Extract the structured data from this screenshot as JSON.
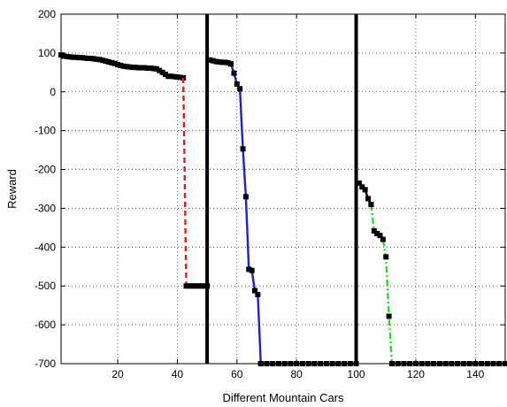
{
  "chart_data": {
    "type": "line",
    "title": "",
    "xlabel": "Different Mountain Cars",
    "ylabel": "Reward",
    "xlim": [
      1,
      150
    ],
    "ylim": [
      -700,
      200
    ],
    "xticks": [
      20,
      40,
      60,
      80,
      100,
      120,
      140
    ],
    "yticks": [
      200,
      100,
      0,
      -100,
      -200,
      -300,
      -400,
      -500,
      -600,
      -700
    ],
    "grid": true,
    "legend": "none",
    "separators": [
      50,
      100
    ],
    "series": [
      {
        "color": "#000000",
        "style": "solid",
        "marker": "square",
        "x": [
          1,
          2,
          3,
          4,
          5,
          6,
          7,
          8,
          9,
          10,
          11,
          12,
          13,
          14,
          15,
          16,
          17,
          18,
          19,
          20,
          21,
          22,
          23,
          24,
          25,
          26,
          27,
          28,
          29,
          30,
          31,
          32,
          33,
          34,
          35,
          36,
          37,
          38,
          39,
          40,
          41,
          42
        ],
        "y": [
          95,
          92,
          91,
          90,
          89,
          89,
          88,
          88,
          87,
          86,
          86,
          85,
          84,
          83,
          81,
          79,
          77,
          75,
          73,
          70,
          68,
          66,
          65,
          64,
          63,
          63,
          62,
          62,
          62,
          61,
          61,
          60,
          59,
          55,
          50,
          45,
          40,
          40,
          39,
          38,
          37,
          36
        ]
      },
      {
        "color": "#e31a1c",
        "style": "dashed",
        "marker": "none",
        "x": [
          42,
          43
        ],
        "y": [
          36,
          -500
        ]
      },
      {
        "color": "#000000",
        "style": "solid",
        "marker": "square",
        "x": [
          43,
          44,
          45,
          46,
          47,
          48,
          49,
          50
        ],
        "y": [
          -500,
          -500,
          -500,
          -500,
          -500,
          -500,
          -500,
          -500
        ]
      },
      {
        "color": "#000000",
        "style": "solid",
        "marker": "square",
        "x": [
          51,
          52,
          53,
          54,
          55,
          56,
          57,
          58
        ],
        "y": [
          82,
          80,
          78,
          77,
          76,
          76,
          75,
          72
        ]
      },
      {
        "color": "#1f1fcc",
        "style": "solid",
        "marker": "square",
        "x": [
          58,
          59,
          60,
          61,
          62,
          63,
          64,
          65,
          66,
          67,
          68
        ],
        "y": [
          72,
          48,
          20,
          8,
          -147,
          -270,
          -457,
          -460,
          -512,
          -522,
          -700
        ]
      },
      {
        "color": "#000000",
        "style": "solid",
        "marker": "square",
        "x": [
          68,
          70,
          72,
          74,
          76,
          78,
          80,
          82,
          84,
          86,
          88,
          90,
          92,
          94,
          96,
          98,
          100
        ],
        "y": [
          -700,
          -700,
          -700,
          -700,
          -700,
          -700,
          -700,
          -700,
          -700,
          -700,
          -700,
          -700,
          -700,
          -700,
          -700,
          -700,
          -700
        ]
      },
      {
        "color": "#000000",
        "style": "solid",
        "marker": "square",
        "x": [
          101,
          102,
          103,
          104,
          105
        ],
        "y": [
          -235,
          -245,
          -252,
          -275,
          -290
        ]
      },
      {
        "color": "#22dd22",
        "style": "dashdot",
        "marker": "square",
        "x": [
          105,
          106,
          107,
          108,
          109,
          110,
          111,
          112
        ],
        "y": [
          -290,
          -358,
          -365,
          -370,
          -380,
          -425,
          -578,
          -700
        ]
      },
      {
        "color": "#000000",
        "style": "solid",
        "marker": "square",
        "x": [
          112,
          114,
          116,
          118,
          120,
          122,
          124,
          126,
          128,
          130,
          132,
          134,
          136,
          138,
          140,
          142,
          144,
          146,
          148,
          150
        ],
        "y": [
          -700,
          -700,
          -700,
          -700,
          -700,
          -700,
          -700,
          -700,
          -700,
          -700,
          -700,
          -700,
          -700,
          -700,
          -700,
          -700,
          -700,
          -700,
          -700,
          -700
        ]
      }
    ]
  }
}
